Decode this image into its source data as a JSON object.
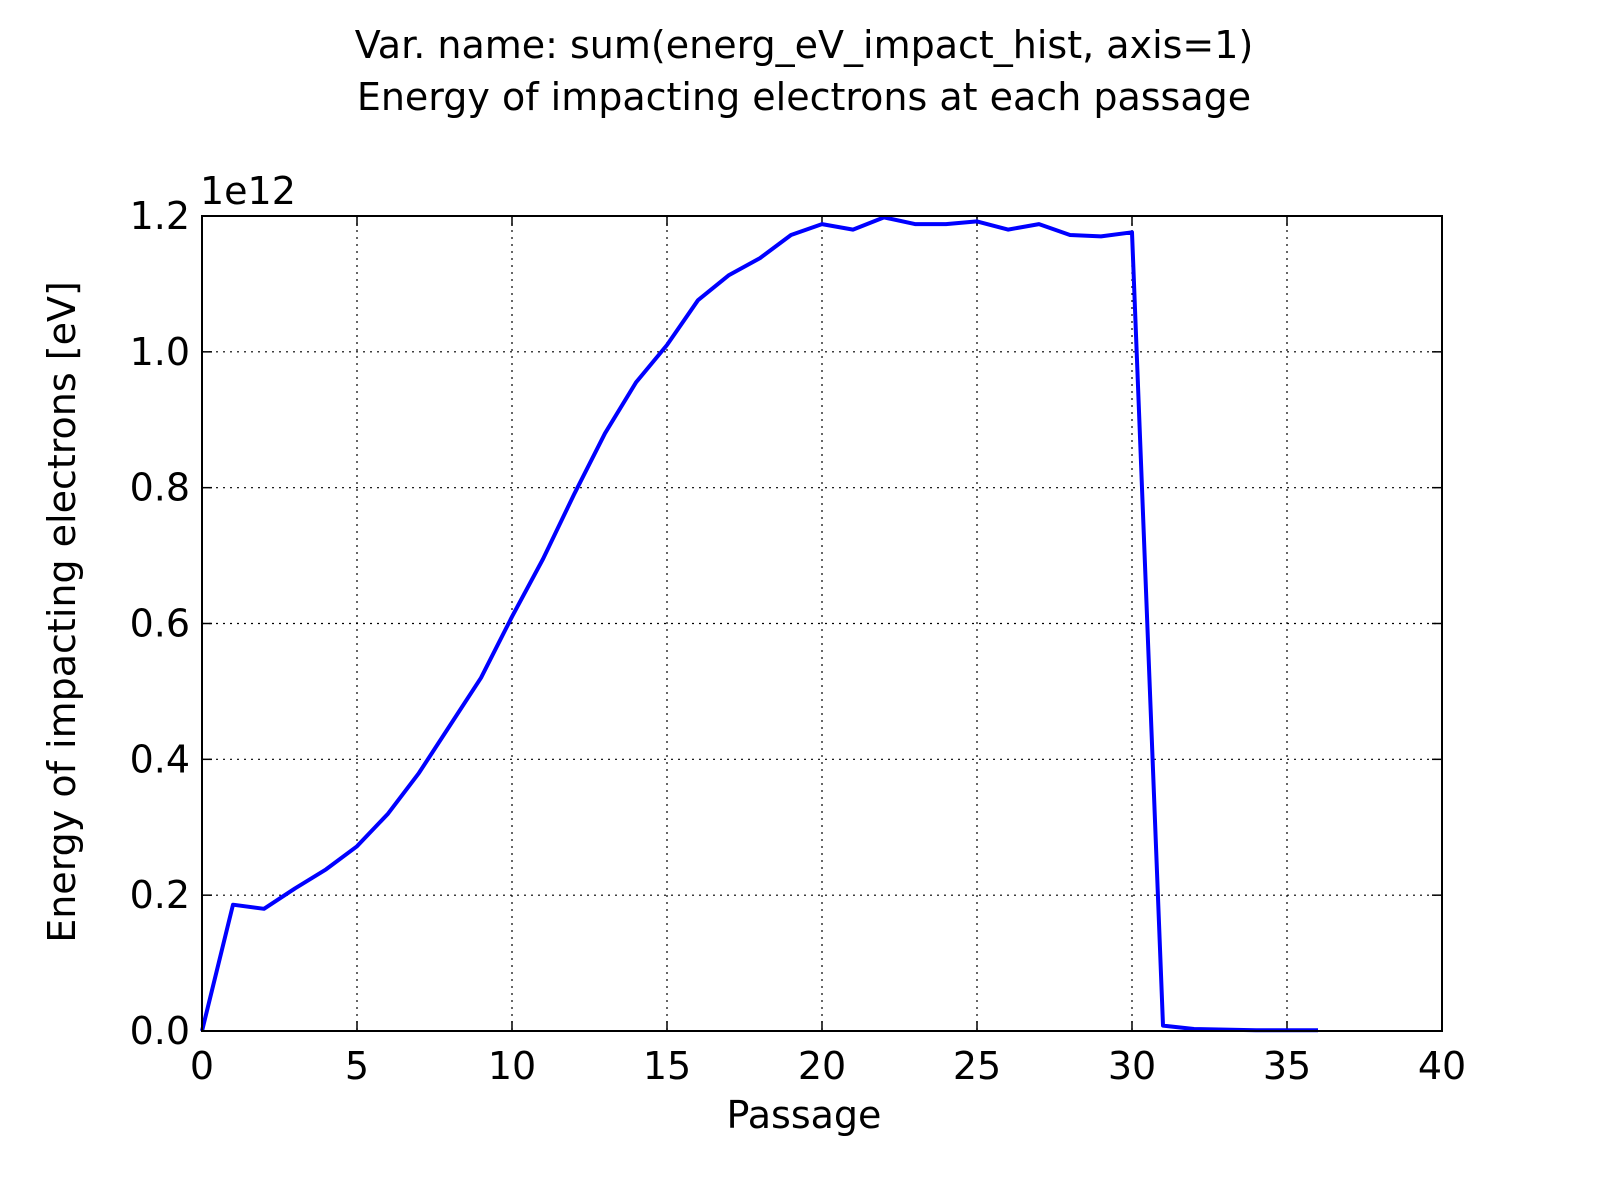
{
  "chart_data": {
    "type": "line",
    "title_line1": "Var. name: sum(energ_eV_impact_hist, axis=1)",
    "title_line2": "Energy of impacting electrons at each passage",
    "xlabel": "Passage",
    "ylabel": "Energy of impacting electrons [eV]",
    "y_offset_label": "1e12",
    "xlim": [
      0,
      40
    ],
    "ylim": [
      0,
      1.2
    ],
    "xticks": [
      0,
      5,
      10,
      15,
      20,
      25,
      30,
      35,
      40
    ],
    "yticks": [
      0.0,
      0.2,
      0.4,
      0.6,
      0.8,
      1.0,
      1.2
    ],
    "xtick_labels": [
      "0",
      "5",
      "10",
      "15",
      "20",
      "25",
      "30",
      "35",
      "40"
    ],
    "ytick_labels": [
      "0.0",
      "0.2",
      "0.4",
      "0.6",
      "0.8",
      "1.0",
      "1.2"
    ],
    "grid": true,
    "grid_style": "dotted",
    "line_color": "#0000ff",
    "series": [
      {
        "x": [
          0,
          1,
          2,
          3,
          4,
          5,
          6,
          7,
          8,
          9,
          10,
          11,
          12,
          13,
          14,
          15,
          16,
          17,
          18,
          19,
          20,
          21,
          22,
          23,
          24,
          25,
          26,
          27,
          28,
          29,
          30,
          31,
          32,
          33,
          34,
          35,
          36
        ],
        "y": [
          0.0,
          0.186,
          0.18,
          0.21,
          0.238,
          0.272,
          0.32,
          0.38,
          0.45,
          0.52,
          0.61,
          0.695,
          0.79,
          0.88,
          0.955,
          1.01,
          1.076,
          1.113,
          1.138,
          1.172,
          1.188,
          1.18,
          1.198,
          1.188,
          1.188,
          1.192,
          1.18,
          1.188,
          1.172,
          1.17,
          1.176,
          0.008,
          0.003,
          0.002,
          0.001,
          0.001,
          0.001
        ]
      }
    ]
  }
}
